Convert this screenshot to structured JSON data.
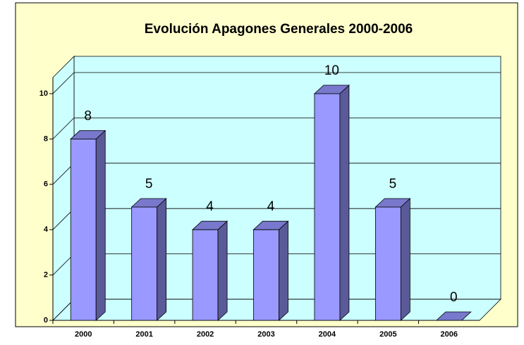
{
  "chart_data": {
    "type": "bar3d",
    "title": "Evolución Apagones Generales 2000-2006",
    "categories": [
      "2000",
      "2001",
      "2002",
      "2003",
      "2004",
      "2005",
      "2006"
    ],
    "values": [
      8,
      5,
      4,
      4,
      10,
      5,
      0
    ],
    "color": "#9999ff",
    "ylim": [
      0,
      10
    ],
    "yticks": [
      0,
      2,
      4,
      6,
      8,
      10
    ],
    "grid": true
  }
}
